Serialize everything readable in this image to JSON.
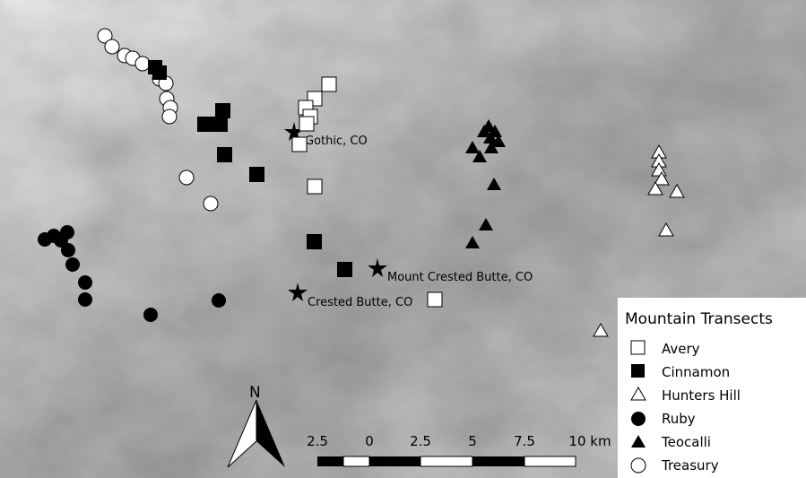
{
  "towns": [
    {
      "name": "Gothic, CO"
    },
    {
      "name": "Mount Crested Butte, CO"
    },
    {
      "name": "Crested Butte, CO"
    }
  ],
  "north_arrow": {
    "label": "N"
  },
  "scale_bar": {
    "labels": [
      "2.5",
      "0",
      "2.5",
      "5",
      "7.5",
      "10 km"
    ]
  },
  "legend": {
    "title": "Mountain Transects",
    "items": [
      {
        "label": "Avery",
        "symbol": "square",
        "fill": "#ffffff"
      },
      {
        "label": "Cinnamon",
        "symbol": "square",
        "fill": "#000000"
      },
      {
        "label": "Hunters Hill",
        "symbol": "triangle",
        "fill": "#ffffff"
      },
      {
        "label": "Ruby",
        "symbol": "circle",
        "fill": "#000000"
      },
      {
        "label": "Teocalli",
        "symbol": "triangle",
        "fill": "#000000"
      },
      {
        "label": "Treasury",
        "symbol": "circle",
        "fill": "#ffffff"
      }
    ]
  },
  "colors": {
    "valley": "#5e5e5e",
    "ridge": "#f2f2f2",
    "marker_stroke": "#000000"
  }
}
